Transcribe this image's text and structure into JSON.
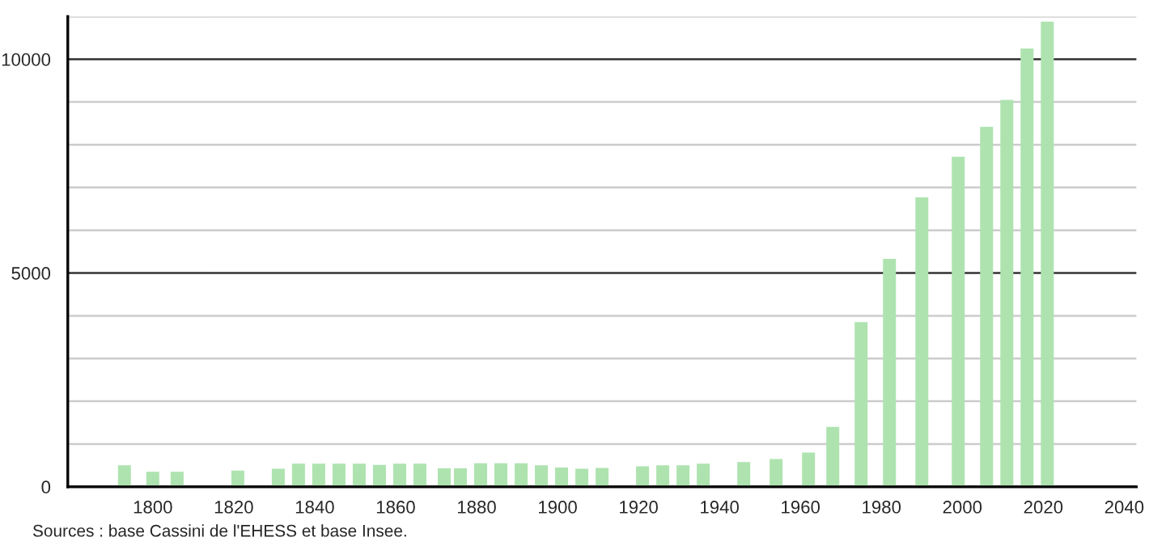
{
  "chart_data": {
    "type": "bar",
    "color": "#aee3b0",
    "x": [
      1793,
      1800,
      1806,
      1821,
      1831,
      1836,
      1841,
      1846,
      1851,
      1856,
      1861,
      1866,
      1872,
      1876,
      1881,
      1886,
      1891,
      1896,
      1901,
      1906,
      1911,
      1921,
      1926,
      1931,
      1936,
      1946,
      1954,
      1962,
      1968,
      1975,
      1982,
      1990,
      1999,
      2006,
      2011,
      2016,
      2021
    ],
    "values": [
      500,
      350,
      350,
      380,
      420,
      540,
      540,
      540,
      540,
      510,
      540,
      540,
      430,
      430,
      550,
      550,
      550,
      500,
      450,
      420,
      440,
      480,
      500,
      500,
      540,
      580,
      650,
      800,
      1400,
      3850,
      5330,
      6770,
      7720,
      8420,
      9050,
      10250,
      10880
    ],
    "xlim": [
      1779,
      2043
    ],
    "xticks": [
      1800,
      1820,
      1840,
      1860,
      1880,
      1900,
      1920,
      1940,
      1960,
      1980,
      2000,
      2020,
      2040
    ],
    "ylim": [
      0,
      11000
    ],
    "yticks": [
      0,
      {
        "value": 1000,
        "label": null
      },
      {
        "value": 2000,
        "label": null
      },
      {
        "value": 3000,
        "label": null
      },
      {
        "value": 4000,
        "label": null
      },
      5000,
      {
        "value": 6000,
        "label": null
      },
      {
        "value": 7000,
        "label": null
      },
      {
        "value": 8000,
        "label": null
      },
      {
        "value": 9000,
        "label": null
      },
      10000,
      {
        "value": 11000,
        "label": null
      }
    ],
    "grid": "y",
    "annotations": [
      "Sources : base Cassini de l'EHESS et base Insee."
    ]
  }
}
